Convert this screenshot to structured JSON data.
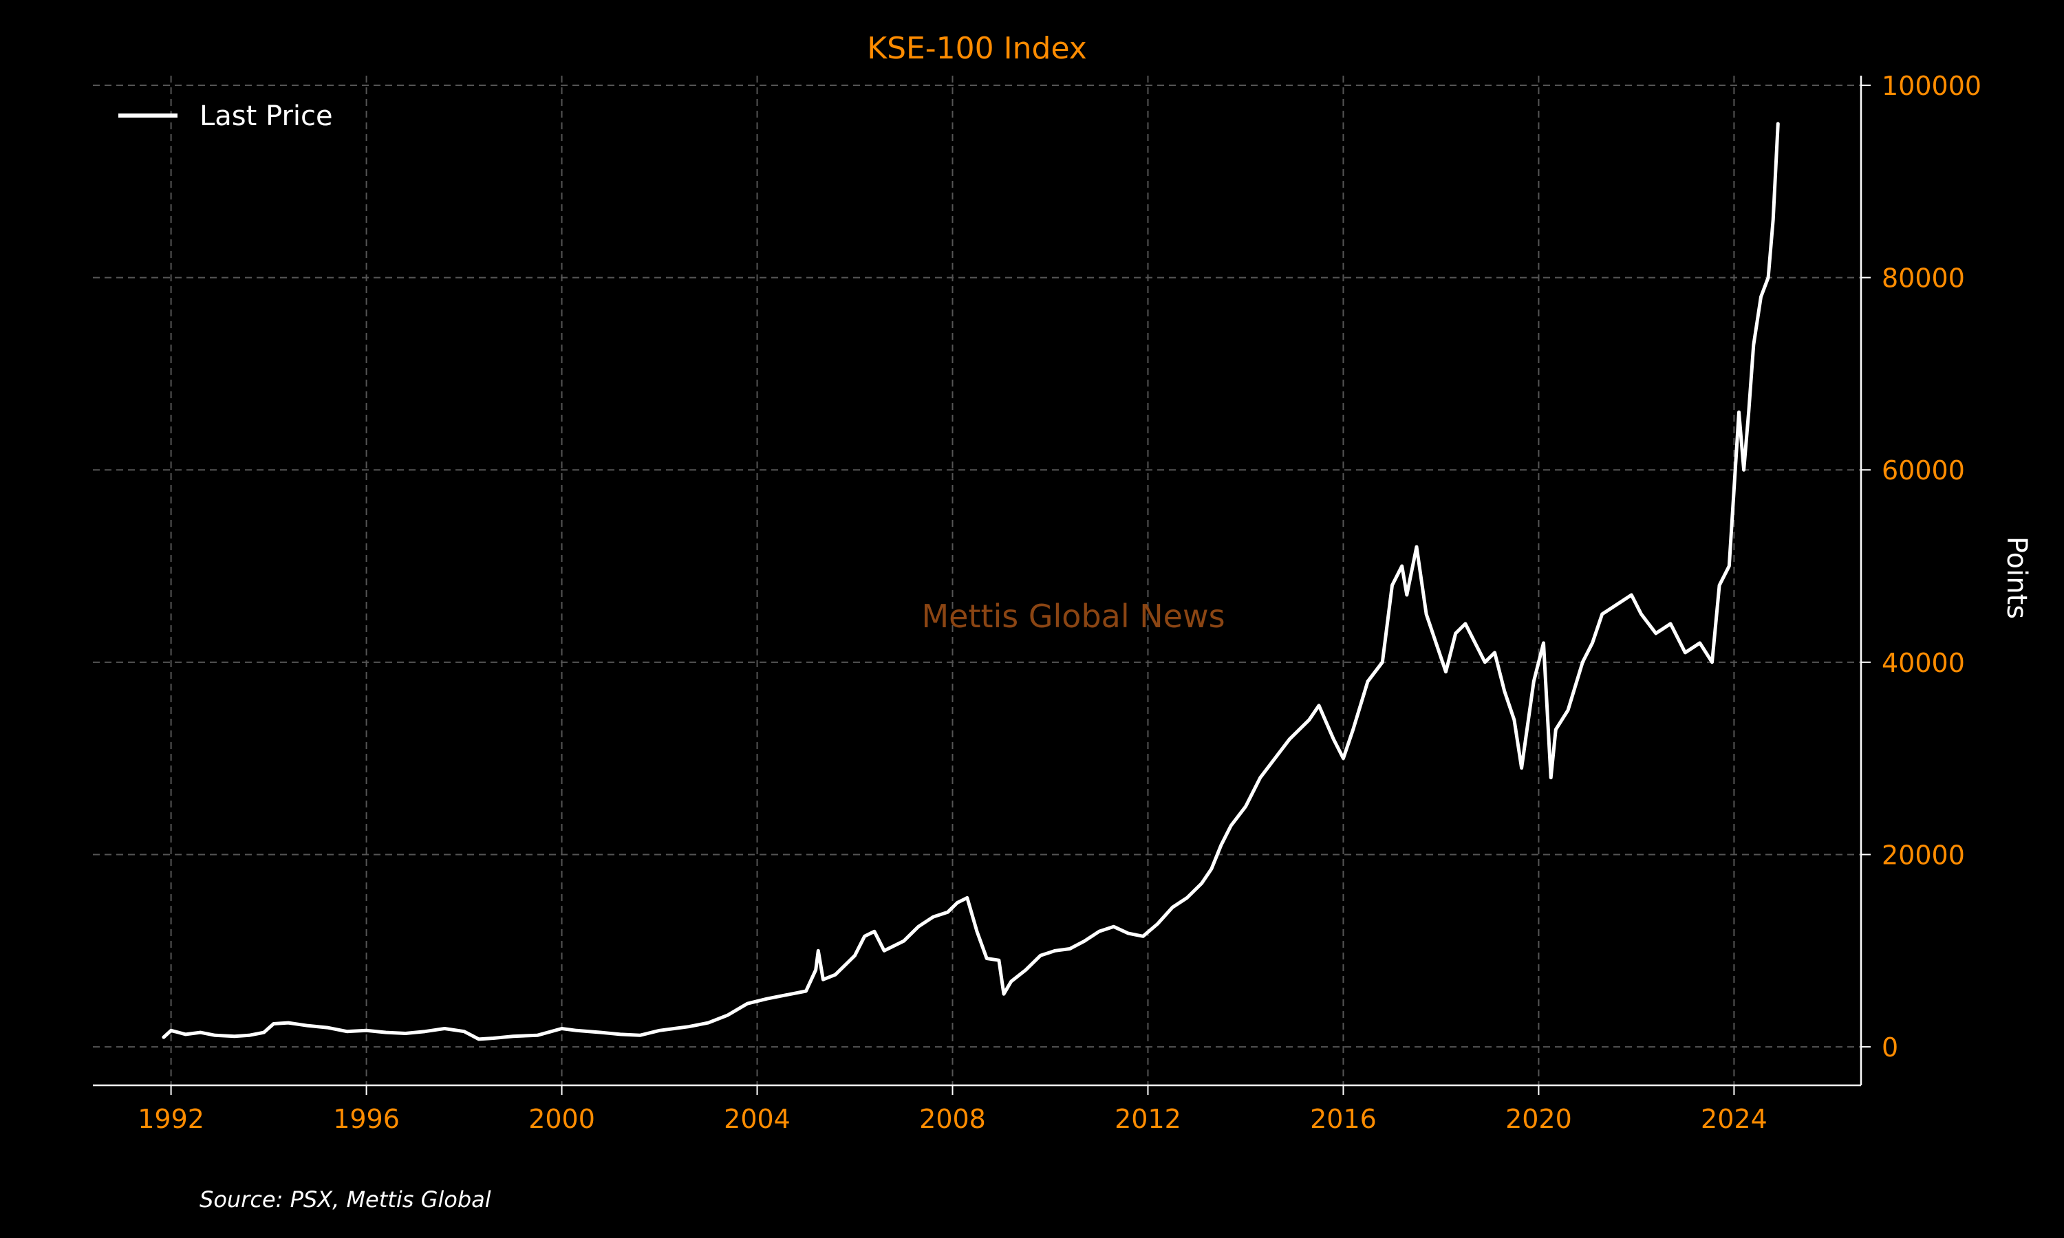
{
  "chart_data": {
    "type": "line",
    "title": "KSE-100 Index",
    "xlabel": "",
    "ylabel": "Points",
    "xlim": [
      1990.4,
      2026.6
    ],
    "ylim": [
      -4000,
      101000
    ],
    "x_ticks": [
      1992,
      1996,
      2000,
      2004,
      2008,
      2012,
      2016,
      2020,
      2024
    ],
    "y_ticks": [
      0,
      20000,
      40000,
      60000,
      80000,
      100000
    ],
    "x_tick_labels": [
      "1992",
      "1996",
      "2000",
      "2004",
      "2008",
      "2012",
      "2016",
      "2020",
      "2024"
    ],
    "y_tick_labels": [
      "0",
      "20000",
      "40000",
      "60000",
      "80000",
      "100000"
    ],
    "grid": true,
    "legend_position": "top-left",
    "series": [
      {
        "name": "Last Price",
        "color": "#FFFFFF",
        "x": [
          1991.85,
          1992.0,
          1992.3,
          1992.6,
          1992.9,
          1993.3,
          1993.6,
          1993.9,
          1994.1,
          1994.4,
          1994.8,
          1995.2,
          1995.6,
          1996.0,
          1996.4,
          1996.8,
          1997.2,
          1997.6,
          1998.0,
          1998.3,
          1998.6,
          1999.0,
          1999.5,
          2000.0,
          2000.3,
          2000.8,
          2001.2,
          2001.6,
          2002.0,
          2002.3,
          2002.6,
          2003.0,
          2003.4,
          2003.8,
          2004.2,
          2004.6,
          2005.0,
          2005.2,
          2005.25,
          2005.35,
          2005.6,
          2006.0,
          2006.2,
          2006.4,
          2006.6,
          2007.0,
          2007.3,
          2007.6,
          2007.9,
          2008.1,
          2008.3,
          2008.5,
          2008.7,
          2008.95,
          2009.05,
          2009.2,
          2009.5,
          2009.8,
          2010.1,
          2010.4,
          2010.7,
          2011.0,
          2011.3,
          2011.6,
          2011.9,
          2012.2,
          2012.5,
          2012.8,
          2013.1,
          2013.3,
          2013.5,
          2013.7,
          2014.0,
          2014.3,
          2014.6,
          2014.9,
          2015.1,
          2015.3,
          2015.5,
          2015.8,
          2016.0,
          2016.2,
          2016.5,
          2016.8,
          2017.0,
          2017.2,
          2017.3,
          2017.5,
          2017.7,
          2017.9,
          2018.1,
          2018.3,
          2018.5,
          2018.7,
          2018.9,
          2019.1,
          2019.3,
          2019.5,
          2019.65,
          2019.9,
          2020.1,
          2020.25,
          2020.35,
          2020.6,
          2020.9,
          2021.1,
          2021.3,
          2021.6,
          2021.9,
          2022.1,
          2022.4,
          2022.7,
          2023.0,
          2023.3,
          2023.55,
          2023.7,
          2023.9,
          2024.0,
          2024.1,
          2024.2,
          2024.3,
          2024.4,
          2024.55,
          2024.7,
          2024.8,
          2024.9
        ],
        "y": [
          1000,
          1700,
          1300,
          1500,
          1200,
          1100,
          1200,
          1500,
          2400,
          2500,
          2200,
          2000,
          1600,
          1700,
          1500,
          1400,
          1600,
          1900,
          1600,
          800,
          900,
          1100,
          1200,
          1900,
          1700,
          1500,
          1300,
          1200,
          1700,
          1900,
          2100,
          2500,
          3300,
          4500,
          5000,
          5400,
          5800,
          8000,
          10000,
          7000,
          7500,
          9500,
          11500,
          12000,
          10000,
          11000,
          12500,
          13500,
          14000,
          15000,
          15500,
          12000,
          9200,
          9000,
          5500,
          6800,
          8000,
          9500,
          10000,
          10200,
          11000,
          12000,
          12500,
          11800,
          11500,
          12800,
          14500,
          15500,
          17000,
          18500,
          21000,
          23000,
          25000,
          28000,
          30000,
          32000,
          33000,
          34000,
          35500,
          32000,
          30000,
          33000,
          38000,
          40000,
          48000,
          50000,
          47000,
          52000,
          45000,
          42000,
          39000,
          43000,
          44000,
          42000,
          40000,
          41000,
          37000,
          34000,
          29000,
          38000,
          42000,
          28000,
          33000,
          35000,
          40000,
          42000,
          45000,
          46000,
          47000,
          45000,
          43000,
          44000,
          41000,
          42000,
          40000,
          48000,
          50000,
          58000,
          66000,
          60000,
          66000,
          73000,
          78000,
          80000,
          86000,
          96000
        ]
      }
    ]
  },
  "legend": {
    "label": "Last Price"
  },
  "watermark": "Mettis Global News",
  "source": "Source: PSX, Mettis Global",
  "colors": {
    "background": "#000000",
    "line": "#FFFFFF",
    "accent": "#FF8C00",
    "watermark": "#8B4513",
    "grid": "#555555"
  }
}
